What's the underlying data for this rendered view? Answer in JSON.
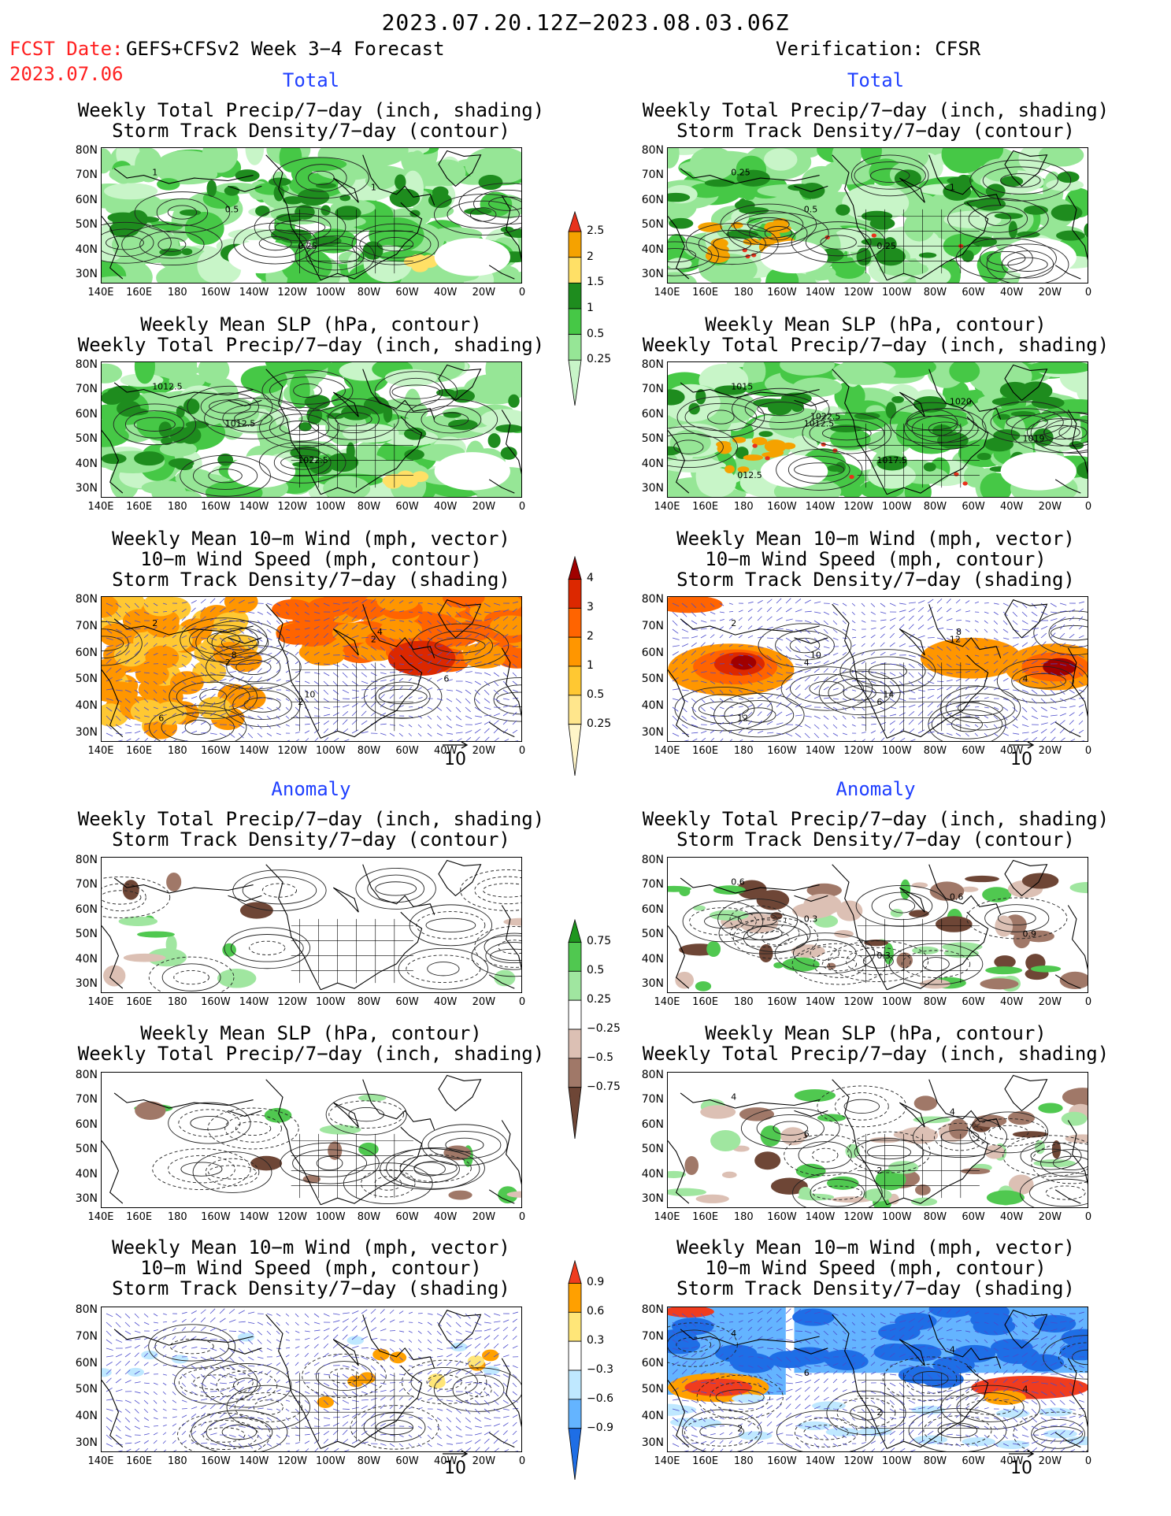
{
  "header": {
    "period": "2023.07.20.12Z−2023.08.03.06Z",
    "fcst_date_label": "FCST Date:",
    "model": "GEFS+CFSv2 Week 3−4 Forecast",
    "fcst_date": "2023.07.06",
    "verification": "Verification: CFSR"
  },
  "sections": {
    "total": "Total",
    "anomaly": "Anomaly"
  },
  "panel_titles": {
    "precip_storm": [
      "Weekly Total Precip/7−day (inch, shading)",
      "Storm Track Density/7−day (contour)"
    ],
    "slp_precip": [
      "Weekly Mean SLP (hPa, contour)",
      "Weekly Total Precip/7−day (inch, shading)"
    ],
    "wind_storm": [
      "Weekly Mean 10−m Wind (mph, vector)",
      "10−m Wind Speed (mph, contour)",
      "Storm Track Density/7−day (shading)"
    ]
  },
  "axes": {
    "lat": [
      "80N",
      "70N",
      "60N",
      "50N",
      "40N",
      "30N"
    ],
    "lon": [
      "140E",
      "160E",
      "180",
      "160W",
      "140W",
      "120W",
      "100W",
      "80W",
      "60W",
      "40W",
      "20W",
      "0"
    ]
  },
  "vector_ref": "10",
  "colorbars": {
    "precip_total": {
      "labels": [
        "2.5",
        "2",
        "1.5",
        "1",
        "0.5",
        "0.25"
      ],
      "colors": [
        "#e8321c",
        "#f5a200",
        "#ffe066",
        "#1e8c1e",
        "#46c846",
        "#96e696",
        "#c8f5c8"
      ]
    },
    "storm_total": {
      "labels": [
        "4",
        "3",
        "2",
        "1",
        "0.5",
        "0.25"
      ],
      "colors": [
        "#a00000",
        "#dc2800",
        "#ff6400",
        "#ff9600",
        "#ffc832",
        "#ffe68c",
        "#fff5c8"
      ]
    },
    "precip_anom": {
      "labels": [
        "0.75",
        "0.5",
        "0.25",
        "−0.25",
        "−0.5",
        "−0.75"
      ],
      "colors": [
        "#1e961e",
        "#50c850",
        "#a0e6a0",
        "#ffffff",
        "#dcc0b4",
        "#a07868",
        "#6e4636"
      ]
    },
    "storm_anom": {
      "labels": [
        "0.9",
        "0.6",
        "0.3",
        "−0.3",
        "−0.6",
        "−0.9"
      ],
      "colors": [
        "#f03c1e",
        "#ffa000",
        "#ffe678",
        "#ffffff",
        "#bfe8ff",
        "#64b4ff",
        "#1e6ee6"
      ]
    }
  },
  "contour_labels": {
    "l_total_precip": [
      "1",
      "0.5",
      "0.25",
      "1"
    ],
    "r_total_precip": [
      "0.25",
      "0.5",
      "0.25",
      "1"
    ],
    "l_total_slp": [
      "1012.5",
      "1012.5",
      "1022.5"
    ],
    "r_total_slp": [
      "1015",
      "1012.5",
      "1017.5",
      "1020",
      "1019",
      "012.5",
      "1022.5"
    ],
    "l_total_wind": [
      "2",
      "2",
      "2",
      "2",
      "6",
      "6",
      "8",
      "10",
      "4"
    ],
    "r_total_wind": [
      "2",
      "4",
      "6",
      "12",
      "4",
      "12",
      "10",
      "14",
      "8"
    ],
    "r_anom_precip": [
      "0.6",
      "0.3",
      "0.3",
      "0.6",
      "0.9"
    ],
    "r_anom_slp": [
      "4",
      "6",
      "2",
      "4"
    ],
    "r_anom_wind": [
      "4",
      "6",
      "2",
      "4",
      "4",
      "2"
    ]
  }
}
